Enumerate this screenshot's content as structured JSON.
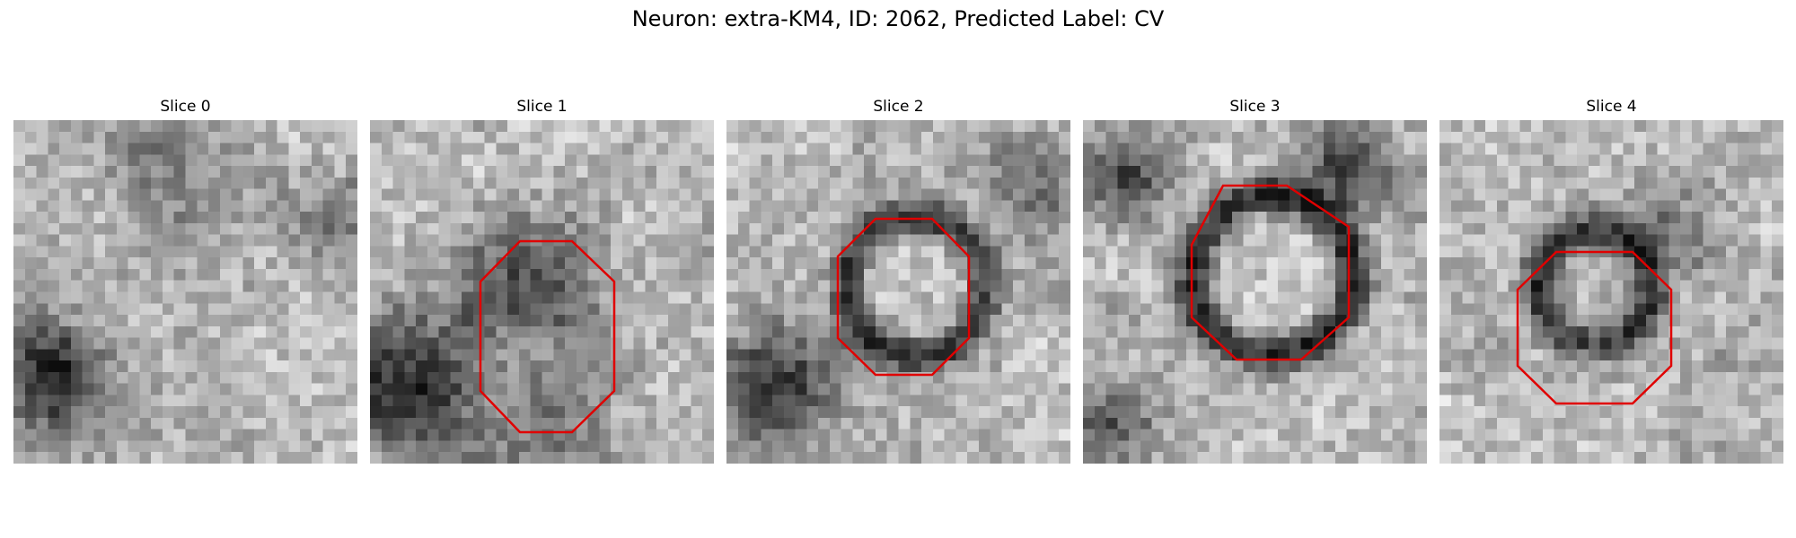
{
  "figure": {
    "title": "Neuron: extra-KM4, ID: 2062, Predicted Label: CV",
    "outline_color": "#e00000"
  },
  "panels": [
    {
      "label": "Slice 0",
      "has_outline": false
    },
    {
      "label": "Slice 1",
      "has_outline": true
    },
    {
      "label": "Slice 2",
      "has_outline": true
    },
    {
      "label": "Slice 3",
      "has_outline": true
    },
    {
      "label": "Slice 4",
      "has_outline": true
    }
  ],
  "image_description": {
    "colormap": "grayscale",
    "grid_resolution": 30
  }
}
